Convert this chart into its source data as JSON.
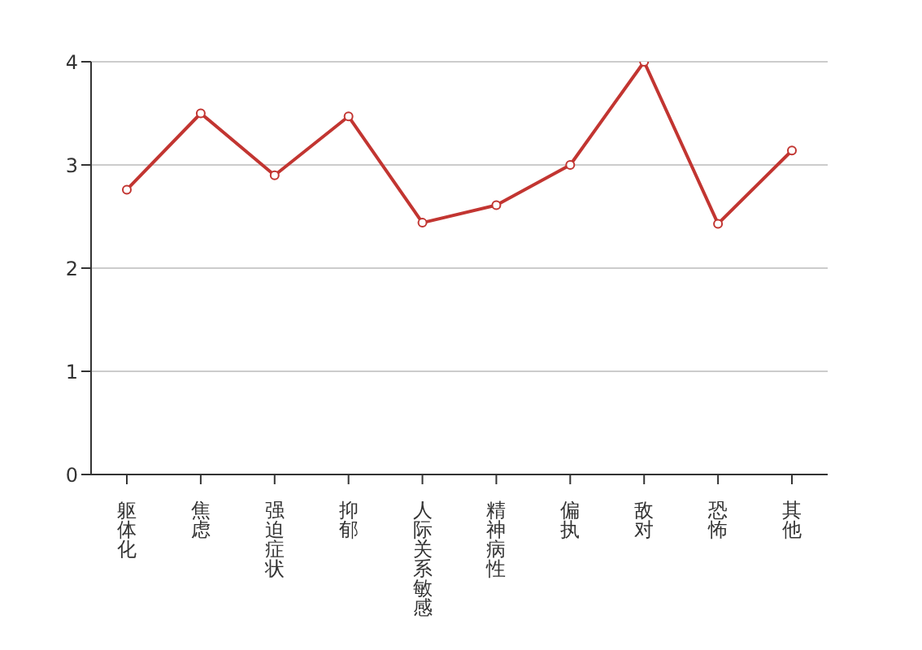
{
  "chart_data": {
    "type": "line",
    "categories": [
      "躯体化",
      "焦虑",
      "强迫症状",
      "抑郁",
      "人际关系敏感",
      "精神病性",
      "偏执",
      "敌对",
      "恐怖",
      "其他"
    ],
    "series": [
      {
        "color": "#c23531",
        "values": [
          2.76,
          3.5,
          2.9,
          3.47,
          2.44,
          2.61,
          3.0,
          4.0,
          2.43,
          3.14
        ]
      }
    ],
    "ylim": [
      0,
      4
    ],
    "yticks": [
      0,
      1,
      2,
      3,
      4
    ],
    "grid": "y",
    "marker": "circle",
    "line_style": "solid"
  }
}
